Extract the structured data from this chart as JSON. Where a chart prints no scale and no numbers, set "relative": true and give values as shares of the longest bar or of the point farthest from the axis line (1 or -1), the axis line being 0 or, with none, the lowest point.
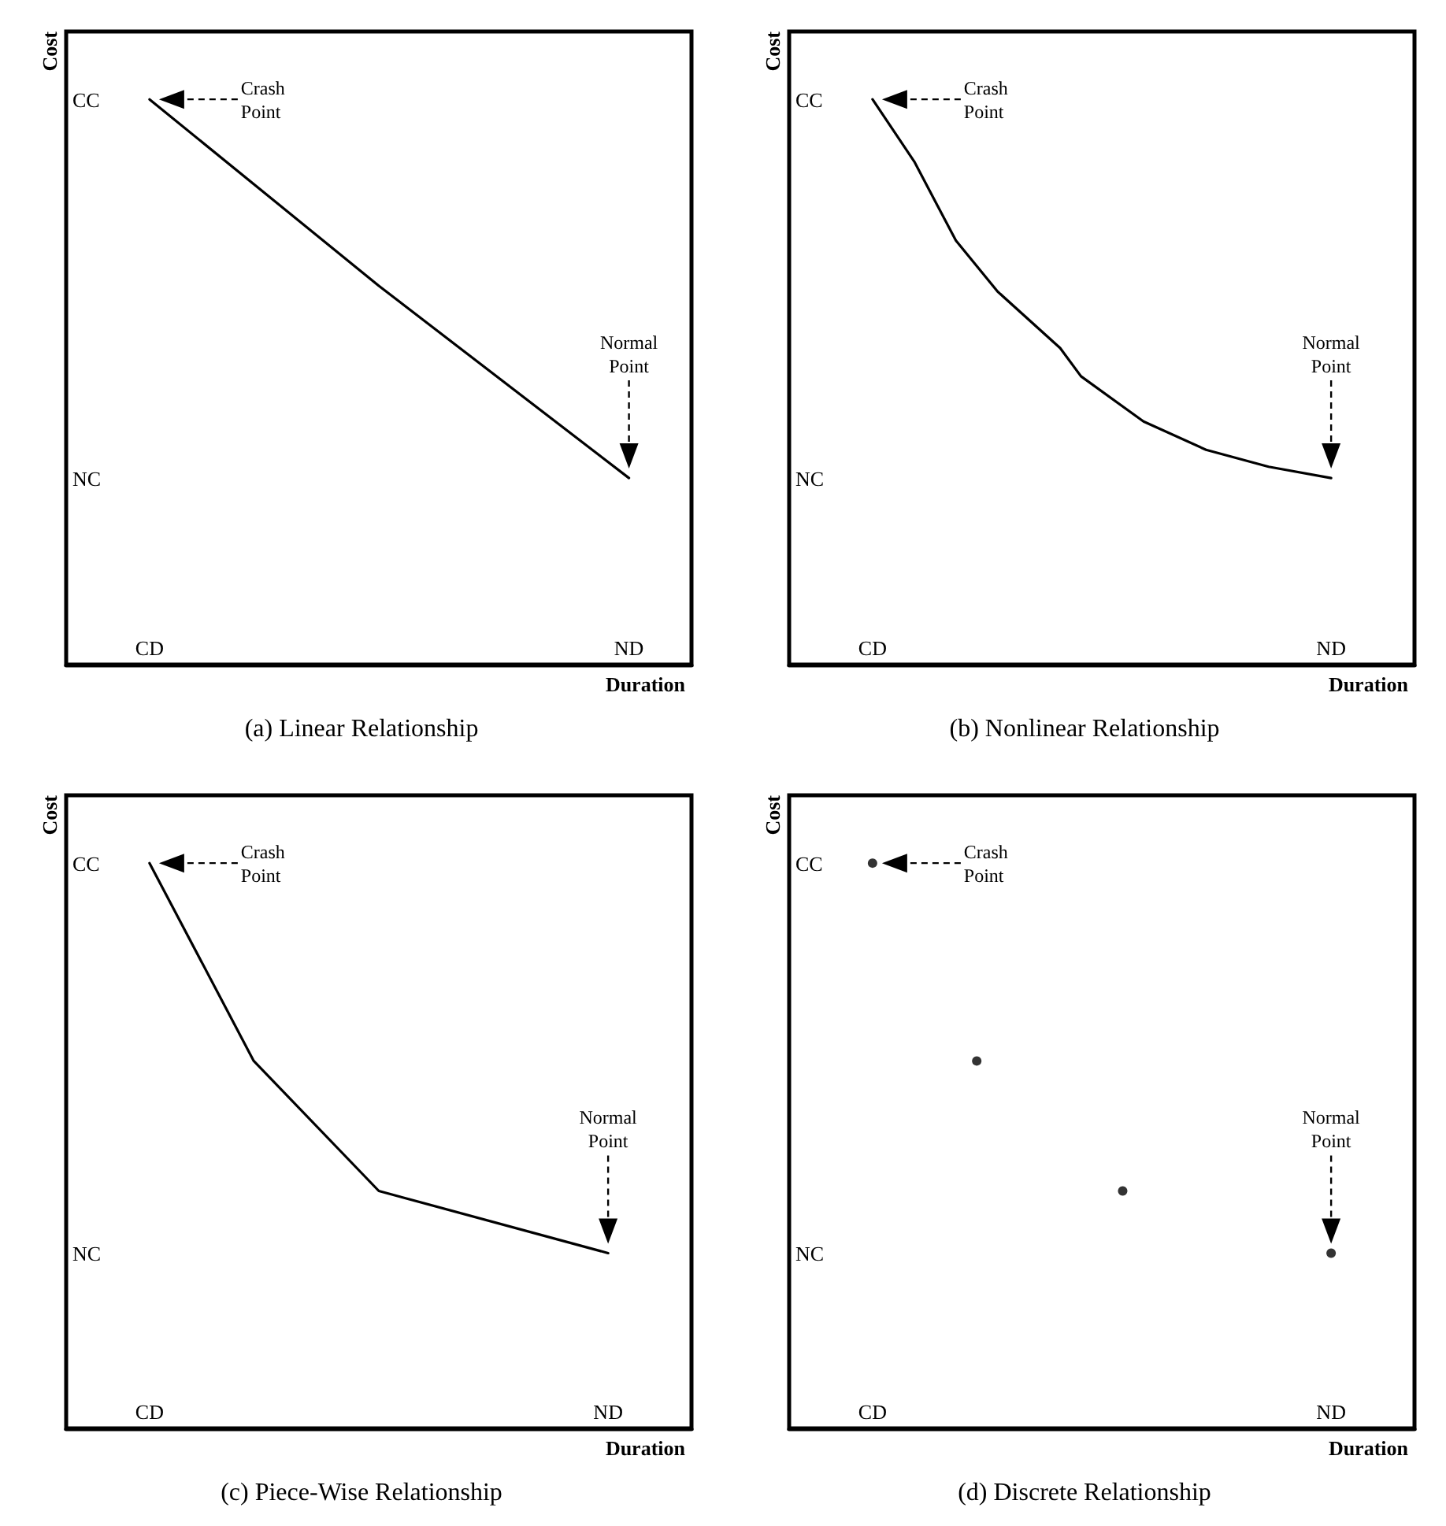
{
  "chart_data": [
    {
      "type": "line",
      "relative": true,
      "title": "(a) Linear Relationship",
      "xlabel": "Duration",
      "ylabel": "Cost",
      "categories": [
        null,
        null,
        null,
        null,
        "CD",
        null,
        null,
        null,
        null,
        null,
        null,
        null,
        null,
        null,
        null,
        null,
        null,
        null,
        null,
        null,
        null,
        null,
        null,
        null,
        null,
        null,
        null,
        "ND",
        null,
        null,
        null
      ],
      "series": [
        {
          "color": "#000000",
          "values": [
            null,
            null,
            null,
            null,
            1,
            null,
            null,
            null,
            null,
            null,
            null,
            null,
            null,
            null,
            null,
            0.67,
            null,
            null,
            null,
            null,
            null,
            null,
            null,
            null,
            null,
            null,
            null,
            0.33,
            null,
            null,
            null
          ]
        }
      ],
      "marker": "none",
      "line_style": "solid",
      "annotations": [
        "CC",
        "NC",
        "Crash Point",
        "Normal Point"
      ]
    },
    {
      "type": "line",
      "relative": true,
      "title": "(b) Nonlinear Relationship",
      "xlabel": "Duration",
      "ylabel": "Cost",
      "categories": [
        null,
        null,
        null,
        null,
        "CD",
        null,
        null,
        null,
        null,
        null,
        null,
        null,
        null,
        null,
        null,
        null,
        null,
        null,
        null,
        null,
        null,
        null,
        null,
        null,
        null,
        null,
        "ND",
        null,
        null,
        null,
        null
      ],
      "series": [
        {
          "color": "#000000",
          "values": [
            null,
            null,
            null,
            null,
            1,
            null,
            0.89,
            null,
            0.75,
            null,
            0.66,
            null,
            null,
            0.56,
            0.51,
            null,
            null,
            0.43,
            null,
            null,
            0.38,
            null,
            null,
            0.35,
            null,
            null,
            0.33,
            null,
            null,
            null,
            null
          ]
        }
      ],
      "marker": "none",
      "line_style": "solid",
      "annotations": [
        "CC",
        "NC",
        "Crash Point",
        "Normal Point"
      ]
    },
    {
      "type": "line",
      "relative": true,
      "title": "(c) Piece-Wise Relationship",
      "xlabel": "Duration",
      "ylabel": "Cost",
      "categories": [
        null,
        null,
        null,
        null,
        "CD",
        null,
        null,
        null,
        null,
        null,
        null,
        null,
        null,
        null,
        null,
        null,
        null,
        null,
        null,
        null,
        null,
        null,
        null,
        null,
        null,
        null,
        "ND",
        null,
        null,
        null,
        null
      ],
      "series": [
        {
          "color": "#000000",
          "values": [
            null,
            null,
            null,
            null,
            1,
            null,
            null,
            null,
            null,
            0.65,
            null,
            null,
            null,
            null,
            null,
            0.42,
            null,
            null,
            null,
            null,
            null,
            null,
            null,
            null,
            null,
            null,
            0.31,
            null,
            null,
            null,
            null
          ]
        }
      ],
      "marker": "none",
      "line_style": "solid",
      "annotations": [
        "CC",
        "NC",
        "Crash Point",
        "Normal Point"
      ]
    },
    {
      "type": "scatter",
      "relative": true,
      "title": "(d) Discrete Relationship",
      "xlabel": "Duration",
      "ylabel": "Cost",
      "categories": [
        null,
        null,
        null,
        null,
        "CD",
        null,
        null,
        null,
        null,
        null,
        null,
        null,
        null,
        null,
        null,
        null,
        null,
        null,
        null,
        null,
        null,
        null,
        null,
        null,
        null,
        null,
        "ND",
        null,
        null,
        null,
        null
      ],
      "series": [
        {
          "color": "#000000",
          "values": [
            null,
            null,
            null,
            null,
            1,
            null,
            null,
            null,
            null,
            0.65,
            null,
            null,
            null,
            null,
            null,
            null,
            0.42,
            null,
            null,
            null,
            null,
            null,
            null,
            null,
            null,
            null,
            0.31,
            null,
            null,
            null,
            null
          ]
        }
      ],
      "marker": "circle",
      "annotations": [
        "CC",
        "NC",
        "Crash Point",
        "Normal Point"
      ]
    }
  ]
}
